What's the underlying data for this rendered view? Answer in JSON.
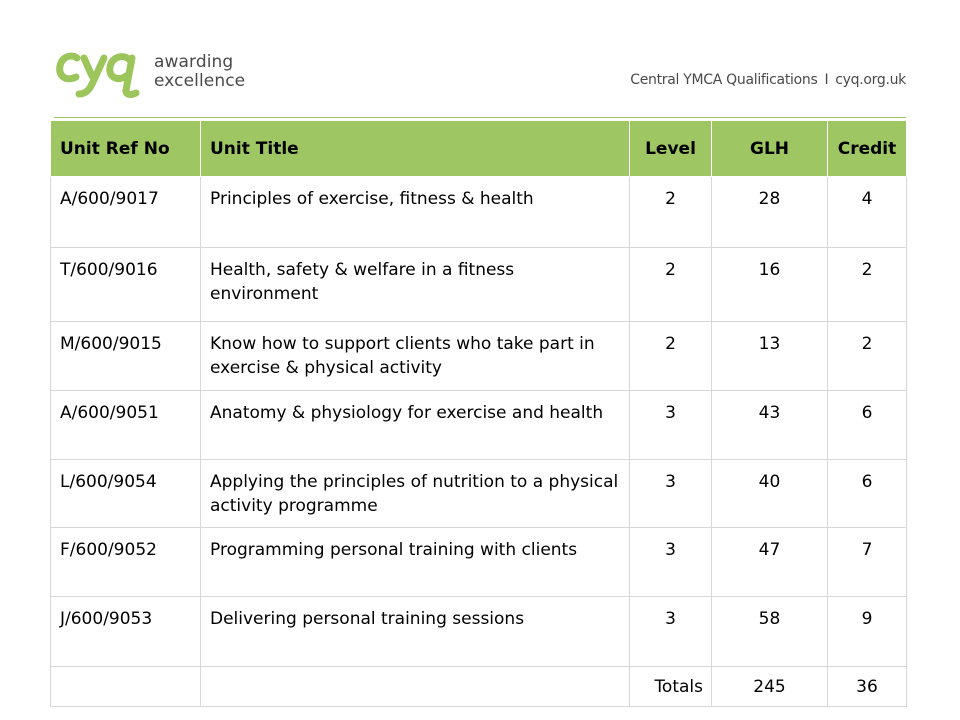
{
  "header": {
    "logo": {
      "mark_text": "CYQ",
      "word1": "awarding",
      "word2": "excellence",
      "color": "#9cc65b"
    },
    "tagline": {
      "name": "Central YMCA Qualifications",
      "separator": "I",
      "site": "cyq.org.uk"
    },
    "rule_color": "#9cc65b"
  },
  "table": {
    "header_color": "#9ec763",
    "columns": [
      "Unit Ref No",
      "Unit Title",
      "Level",
      "GLH",
      "Credit"
    ],
    "rows": [
      {
        "ref": "A/600/9017",
        "title": "Principles of exercise, fitness & health",
        "level": "2",
        "glh": "28",
        "credit": "4"
      },
      {
        "ref": "T/600/9016",
        "title": "Health, safety & welfare in a fitness environment",
        "level": "2",
        "glh": "16",
        "credit": "2"
      },
      {
        "ref": "M/600/9015",
        "title": "Know how to support clients who take part in exercise & physical activity",
        "level": "2",
        "glh": "13",
        "credit": "2"
      },
      {
        "ref": "A/600/9051",
        "title": "Anatomy & physiology for exercise and health",
        "level": "3",
        "glh": "43",
        "credit": "6"
      },
      {
        "ref": "L/600/9054",
        "title": "Applying the principles of nutrition to a physical activity programme",
        "level": "3",
        "glh": "40",
        "credit": "6"
      },
      {
        "ref": "F/600/9052",
        "title": "Programming personal training with clients",
        "level": "3",
        "glh": "47",
        "credit": "7"
      },
      {
        "ref": "J/600/9053",
        "title": "Delivering personal training sessions",
        "level": "3",
        "glh": "58",
        "credit": "9"
      }
    ],
    "totals": {
      "label": "Totals",
      "glh": "245",
      "credit": "36"
    }
  }
}
